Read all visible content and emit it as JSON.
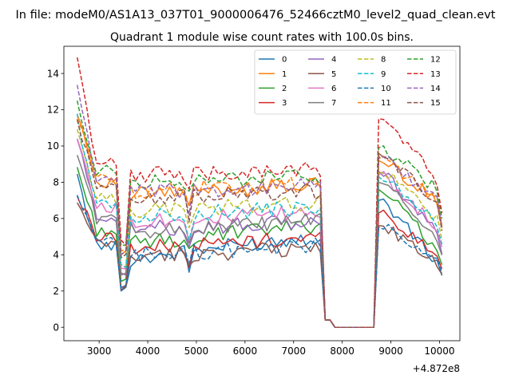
{
  "suptitle": "In file: modeM0/AS1A13_037T01_9000006476_52466cztM0_level2_quad_clean.evt",
  "chart_data": {
    "type": "line",
    "title": "Quadrant 1 module wise count rates with 100.0s bins.",
    "xlabel": "",
    "ylabel": "",
    "x_offset_label": "+4.872e8",
    "xlim": [
      2275,
      10420
    ],
    "ylim": [
      -0.74,
      15.5
    ],
    "xticks": [
      3000,
      4000,
      5000,
      6000,
      7000,
      8000,
      9000,
      10000
    ],
    "yticks": [
      0,
      2,
      4,
      6,
      8,
      10,
      12,
      14
    ],
    "legend_location": "upper right",
    "legend_columns": 4,
    "x_start": 2550,
    "x_step": 100,
    "x_count": 76,
    "series": [
      {
        "name": "0",
        "style": "solid",
        "color": "#1f77b4",
        "base": 3.8,
        "peak": 8.2,
        "peak2": 7.0,
        "slope": 1.3,
        "seed": 1
      },
      {
        "name": "1",
        "style": "solid",
        "color": "#ff7f0e",
        "base": 7.3,
        "peak": 12.0,
        "peak2": 9.2,
        "slope": 0.6,
        "seed": 2
      },
      {
        "name": "2",
        "style": "solid",
        "color": "#2ca02c",
        "base": 4.6,
        "peak": 8.8,
        "peak2": 7.6,
        "slope": 1.1,
        "seed": 3
      },
      {
        "name": "3",
        "style": "solid",
        "color": "#d62728",
        "base": 4.3,
        "peak": 7.3,
        "peak2": 6.3,
        "slope": 0.7,
        "seed": 4
      },
      {
        "name": "4",
        "style": "solid",
        "color": "#9467bd",
        "base": 5.4,
        "peak": 10.4,
        "peak2": 8.6,
        "slope": 0.4,
        "seed": 5
      },
      {
        "name": "5",
        "style": "solid",
        "color": "#8c564b",
        "base": 3.9,
        "peak": 6.8,
        "peak2": 5.6,
        "slope": 0.5,
        "seed": 6
      },
      {
        "name": "6",
        "style": "solid",
        "color": "#e377c2",
        "base": 5.9,
        "peak": 10.6,
        "peak2": 8.4,
        "slope": 0.4,
        "seed": 7
      },
      {
        "name": "7",
        "style": "solid",
        "color": "#7f7f7f",
        "base": 5.3,
        "peak": 9.6,
        "peak2": 8.0,
        "slope": 0.6,
        "seed": 8
      },
      {
        "name": "8",
        "style": "dashed",
        "color": "#bcbd22",
        "base": 6.4,
        "peak": 10.9,
        "peak2": 8.6,
        "slope": 0.5,
        "seed": 9
      },
      {
        "name": "9",
        "style": "dashed",
        "color": "#17becf",
        "base": 6.1,
        "peak": 11.5,
        "peak2": 8.3,
        "slope": 0.5,
        "seed": 10
      },
      {
        "name": "10",
        "style": "dashed",
        "color": "#1f77b4",
        "base": 4.0,
        "peak": 7.1,
        "peak2": 5.5,
        "slope": 0.5,
        "seed": 11
      },
      {
        "name": "11",
        "style": "dashed",
        "color": "#ff7f0e",
        "base": 7.5,
        "peak": 11.7,
        "peak2": 9.3,
        "slope": 0.4,
        "seed": 12
      },
      {
        "name": "12",
        "style": "dashed",
        "color": "#2ca02c",
        "base": 8.0,
        "peak": 12.2,
        "peak2": 9.9,
        "slope": 0.3,
        "seed": 13
      },
      {
        "name": "13",
        "style": "dashed",
        "color": "#d62728",
        "base": 8.4,
        "peak": 14.7,
        "peak2": 11.5,
        "slope": 0.3,
        "seed": 14
      },
      {
        "name": "14",
        "style": "dashed",
        "color": "#9467bd",
        "base": 7.4,
        "peak": 13.4,
        "peak2": 9.4,
        "slope": 0.4,
        "seed": 15
      },
      {
        "name": "15",
        "style": "dashed",
        "color": "#8c564b",
        "base": 7.1,
        "peak": 11.2,
        "peak2": 9.6,
        "slope": 0.4,
        "seed": 16
      }
    ]
  }
}
